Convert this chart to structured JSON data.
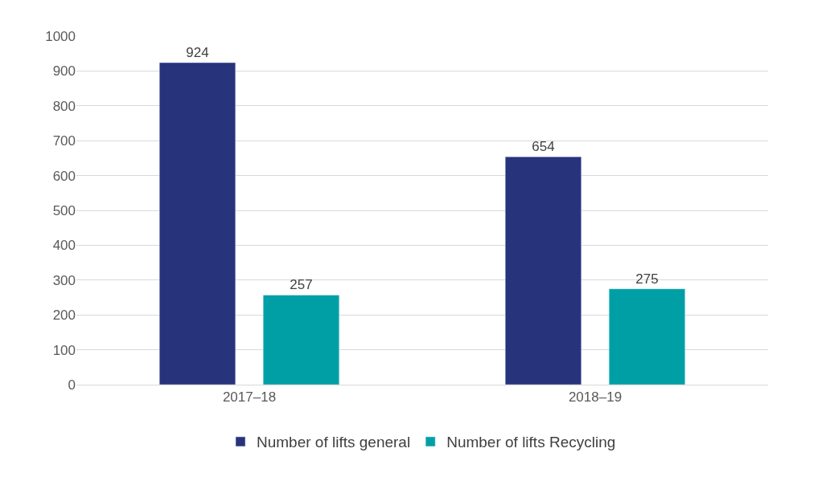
{
  "chart_data": {
    "type": "bar",
    "categories": [
      "2017–18",
      "2018–19"
    ],
    "series": [
      {
        "name": "Number of lifts general",
        "color": "#27347c",
        "values": [
          924,
          654
        ]
      },
      {
        "name": "Number of lifts Recycling",
        "color": "#009fa6",
        "values": [
          257,
          275
        ]
      }
    ],
    "ylim": [
      0,
      1000
    ],
    "yticks": [
      0,
      100,
      200,
      300,
      400,
      500,
      600,
      700,
      800,
      900,
      1000
    ],
    "grid": "y",
    "legend": "bottom",
    "data_labels": true
  }
}
